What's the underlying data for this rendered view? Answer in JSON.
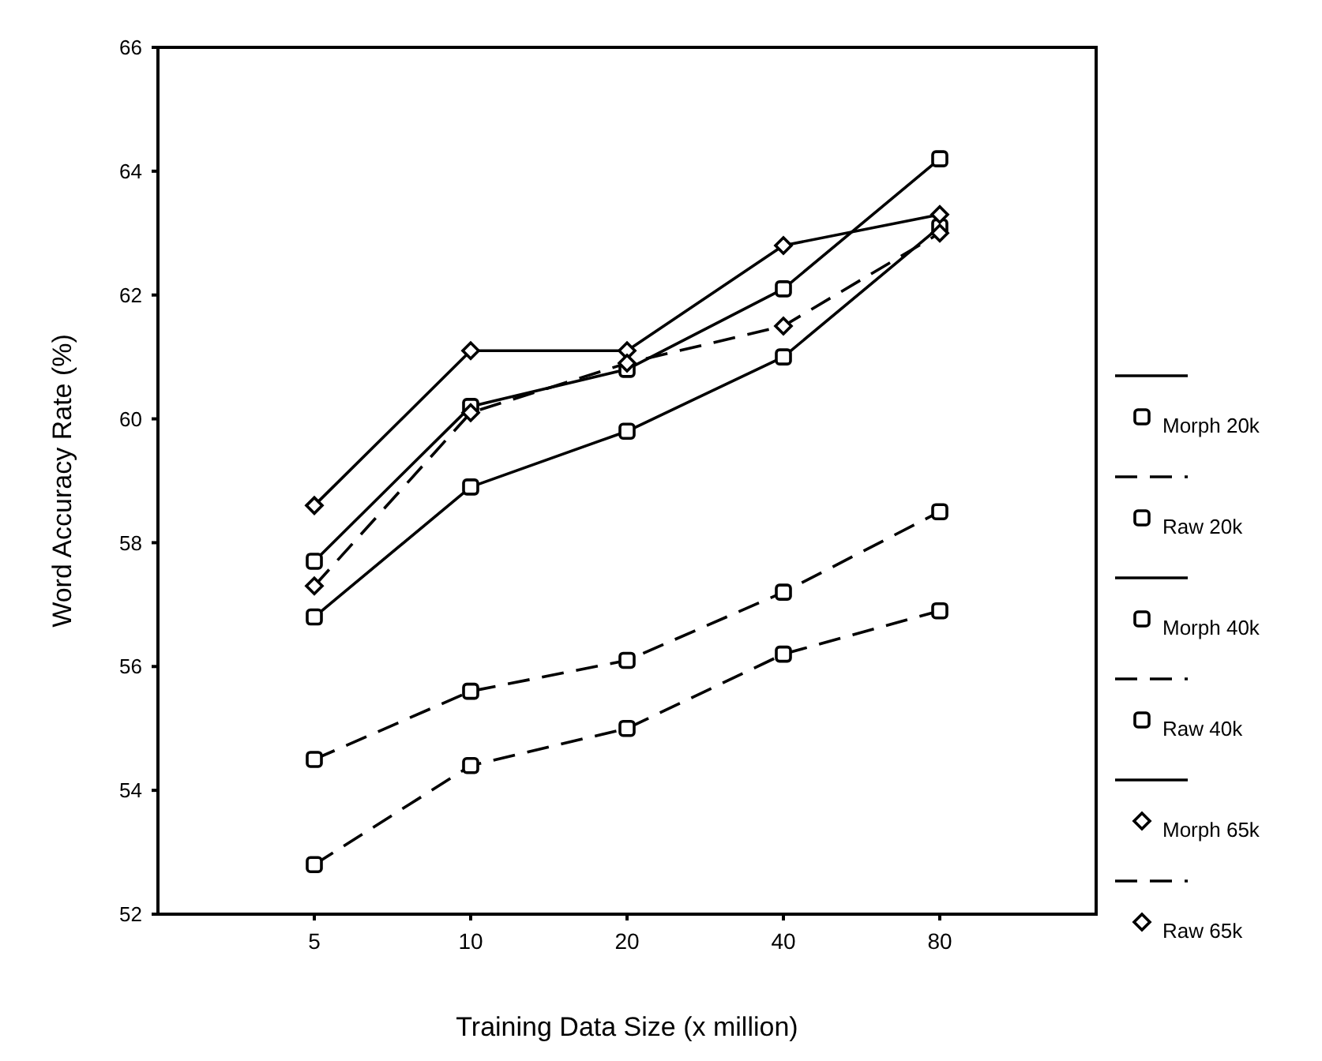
{
  "chart_data": {
    "type": "line",
    "xlabel": "Training Data Size (x million)",
    "ylabel": "Word Accuracy Rate (%)",
    "categories": [
      "5",
      "10",
      "20",
      "40",
      "80"
    ],
    "ylim": [
      52,
      66
    ],
    "yticks": [
      52,
      54,
      56,
      58,
      60,
      62,
      64,
      66
    ],
    "grid": false,
    "legend": "right",
    "series": [
      {
        "name": "Morph 20k",
        "color": "#000000",
        "marker": "square",
        "line_style": "solid",
        "values": [
          56.8,
          58.9,
          59.8,
          61.0,
          63.1
        ]
      },
      {
        "name": "Raw  20k",
        "color": "#000000",
        "marker": "square",
        "line_style": "dashed",
        "values": [
          52.8,
          54.4,
          55.0,
          56.2,
          56.9
        ]
      },
      {
        "name": "Morph 40k",
        "color": "#000000",
        "marker": "square",
        "line_style": "solid",
        "values": [
          57.7,
          60.2,
          60.8,
          62.1,
          64.2
        ]
      },
      {
        "name": "Raw  40k",
        "color": "#000000",
        "marker": "square",
        "line_style": "dashed",
        "values": [
          54.5,
          55.6,
          56.1,
          57.2,
          58.5
        ]
      },
      {
        "name": "Morph 65k",
        "color": "#000000",
        "marker": "diamond",
        "line_style": "solid",
        "values": [
          58.6,
          61.1,
          61.1,
          62.8,
          63.3
        ]
      },
      {
        "name": "Raw  65k",
        "color": "#000000",
        "marker": "diamond",
        "line_style": "dashed",
        "values": [
          57.3,
          60.1,
          60.9,
          61.5,
          63.0
        ]
      }
    ]
  }
}
